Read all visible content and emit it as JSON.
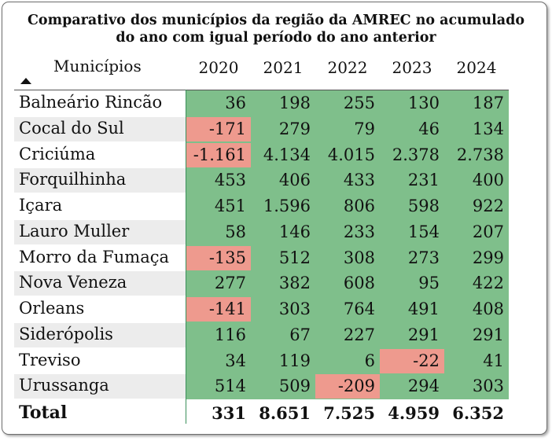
{
  "title_line1": "Comparativo dos municípios da região da AMREC no acumulado",
  "title_line2": "do ano com igual período do ano anterior",
  "column_header": "Municípios",
  "years": [
    "2020",
    "2021",
    "2022",
    "2023",
    "2024"
  ],
  "rows": [
    {
      "name": "Balneário Rincão",
      "values": [
        "36",
        "198",
        "255",
        "130",
        "187"
      ],
      "neg": [
        false,
        false,
        false,
        false,
        false
      ]
    },
    {
      "name": "Cocal do Sul",
      "values": [
        "-171",
        "279",
        "79",
        "46",
        "134"
      ],
      "neg": [
        true,
        false,
        false,
        false,
        false
      ]
    },
    {
      "name": "Criciúma",
      "values": [
        "-1.161",
        "4.134",
        "4.015",
        "2.378",
        "2.738"
      ],
      "neg": [
        true,
        false,
        false,
        false,
        false
      ]
    },
    {
      "name": "Forquilhinha",
      "values": [
        "453",
        "406",
        "433",
        "231",
        "400"
      ],
      "neg": [
        false,
        false,
        false,
        false,
        false
      ]
    },
    {
      "name": "Içara",
      "values": [
        "451",
        "1.596",
        "806",
        "598",
        "922"
      ],
      "neg": [
        false,
        false,
        false,
        false,
        false
      ]
    },
    {
      "name": "Lauro Muller",
      "values": [
        "58",
        "146",
        "233",
        "154",
        "207"
      ],
      "neg": [
        false,
        false,
        false,
        false,
        false
      ]
    },
    {
      "name": "Morro da Fumaça",
      "values": [
        "-135",
        "512",
        "308",
        "273",
        "299"
      ],
      "neg": [
        true,
        false,
        false,
        false,
        false
      ]
    },
    {
      "name": "Nova Veneza",
      "values": [
        "277",
        "382",
        "608",
        "95",
        "422"
      ],
      "neg": [
        false,
        false,
        false,
        false,
        false
      ]
    },
    {
      "name": "Orleans",
      "values": [
        "-141",
        "303",
        "764",
        "491",
        "408"
      ],
      "neg": [
        true,
        false,
        false,
        false,
        false
      ]
    },
    {
      "name": "Siderópolis",
      "values": [
        "116",
        "67",
        "227",
        "291",
        "291"
      ],
      "neg": [
        false,
        false,
        false,
        false,
        false
      ]
    },
    {
      "name": "Treviso",
      "values": [
        "34",
        "119",
        "6",
        "-22",
        "41"
      ],
      "neg": [
        false,
        false,
        false,
        true,
        false
      ]
    },
    {
      "name": "Urussanga",
      "values": [
        "514",
        "509",
        "-209",
        "294",
        "303"
      ],
      "neg": [
        false,
        false,
        true,
        false,
        false
      ]
    }
  ],
  "total": {
    "name": "Total",
    "values": [
      "331",
      "8.651",
      "7.525",
      "4.959",
      "6.352"
    ]
  },
  "colors": {
    "positive": "#7fbf8b",
    "negative": "#ee9a8e",
    "stripe": "#ececec"
  }
}
